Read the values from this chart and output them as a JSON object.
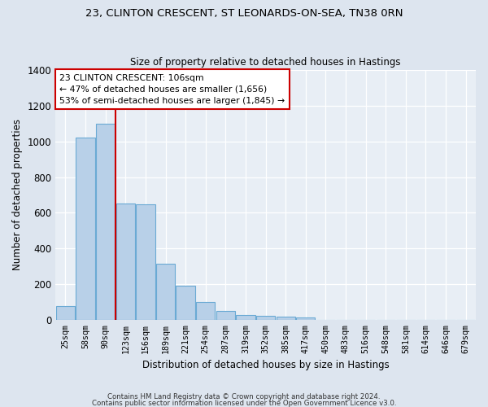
{
  "title1": "23, CLINTON CRESCENT, ST LEONARDS-ON-SEA, TN38 0RN",
  "title2": "Size of property relative to detached houses in Hastings",
  "xlabel": "Distribution of detached houses by size in Hastings",
  "ylabel": "Number of detached properties",
  "bar_color": "#b8d0e8",
  "bar_edge_color": "#6aaad4",
  "background_color": "#e8eef5",
  "fig_background_color": "#dde5ef",
  "grid_color": "#ffffff",
  "categories": [
    "25sqm",
    "58sqm",
    "90sqm",
    "123sqm",
    "156sqm",
    "189sqm",
    "221sqm",
    "254sqm",
    "287sqm",
    "319sqm",
    "352sqm",
    "385sqm",
    "417sqm",
    "450sqm",
    "483sqm",
    "516sqm",
    "548sqm",
    "581sqm",
    "614sqm",
    "646sqm",
    "679sqm"
  ],
  "values": [
    75,
    1020,
    1100,
    650,
    648,
    315,
    190,
    100,
    50,
    28,
    22,
    18,
    12,
    0,
    0,
    0,
    0,
    0,
    0,
    0,
    0
  ],
  "ylim": [
    0,
    1400
  ],
  "yticks": [
    0,
    200,
    400,
    600,
    800,
    1000,
    1200,
    1400
  ],
  "property_label": "23 CLINTON CRESCENT: 106sqm",
  "annotation_line1": "← 47% of detached houses are smaller (1,656)",
  "annotation_line2": "53% of semi-detached houses are larger (1,845) →",
  "vline_x_index": 2.52,
  "annotation_color": "#cc0000",
  "annotation_bg": "#ffffff",
  "footer1": "Contains HM Land Registry data © Crown copyright and database right 2024.",
  "footer2": "Contains public sector information licensed under the Open Government Licence v3.0."
}
